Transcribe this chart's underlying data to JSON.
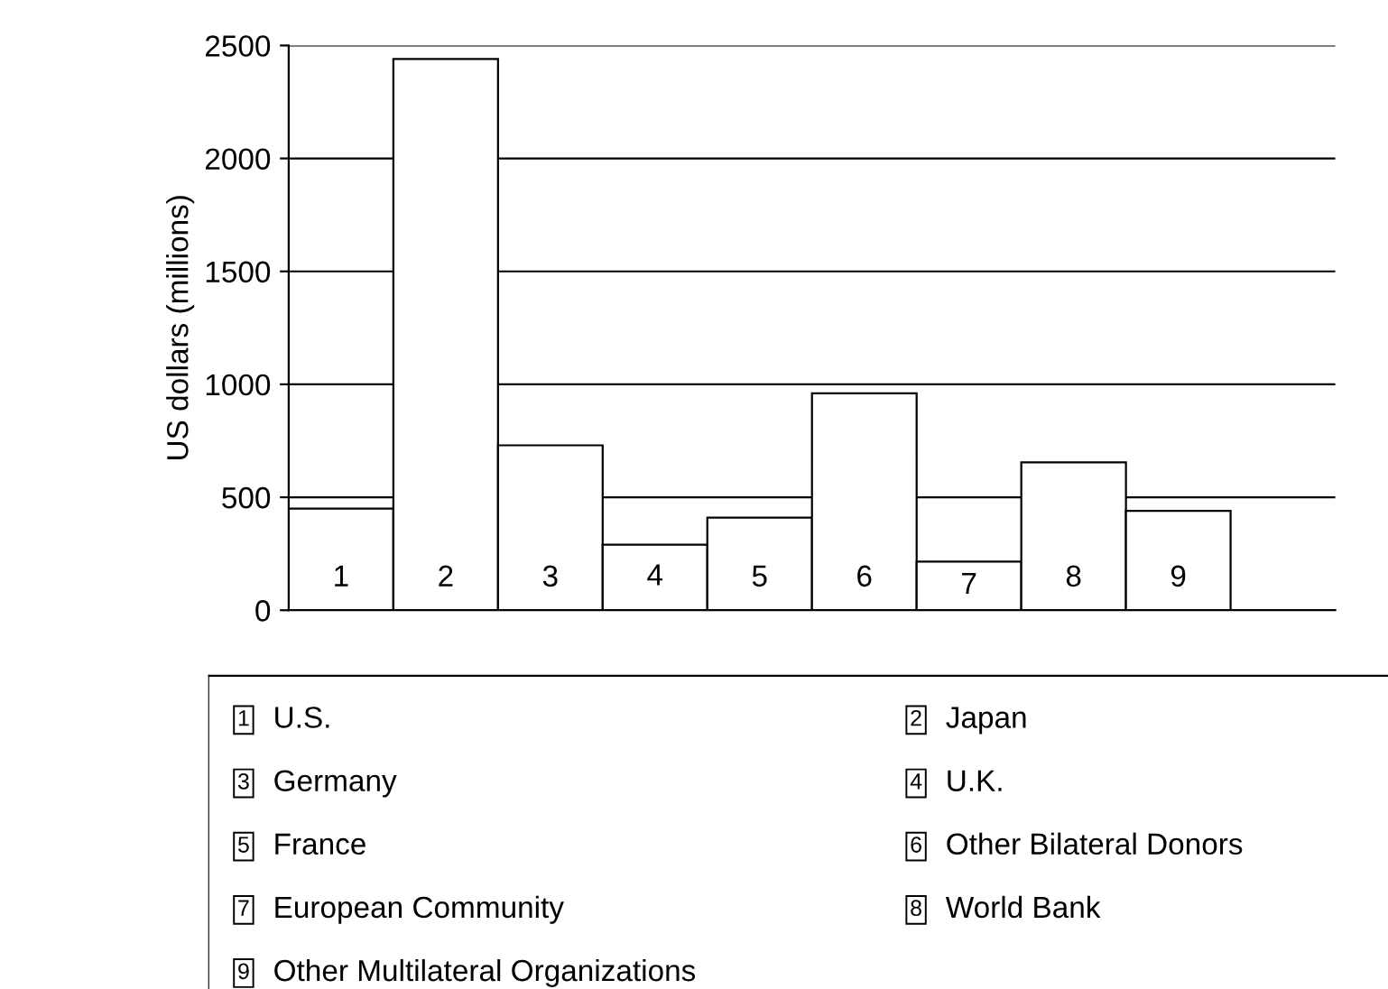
{
  "chart_data": {
    "type": "bar",
    "ylabel": "US dollars (millions)",
    "categories": [
      "1",
      "2",
      "3",
      "4",
      "5",
      "6",
      "7",
      "8",
      "9"
    ],
    "values": [
      450,
      2440,
      730,
      290,
      410,
      960,
      215,
      655,
      440
    ],
    "color": "#ffffff",
    "ylim": [
      0,
      2500
    ],
    "yticks": [
      0,
      500,
      1000,
      1500,
      2000,
      2500
    ],
    "grid": "y",
    "annotations": [
      "U.S.",
      "Japan",
      "Germany",
      "U.K.",
      "France",
      "Other Bilateral Donors",
      "European Community",
      "World Bank",
      "Other Multilateral Organizations"
    ]
  }
}
